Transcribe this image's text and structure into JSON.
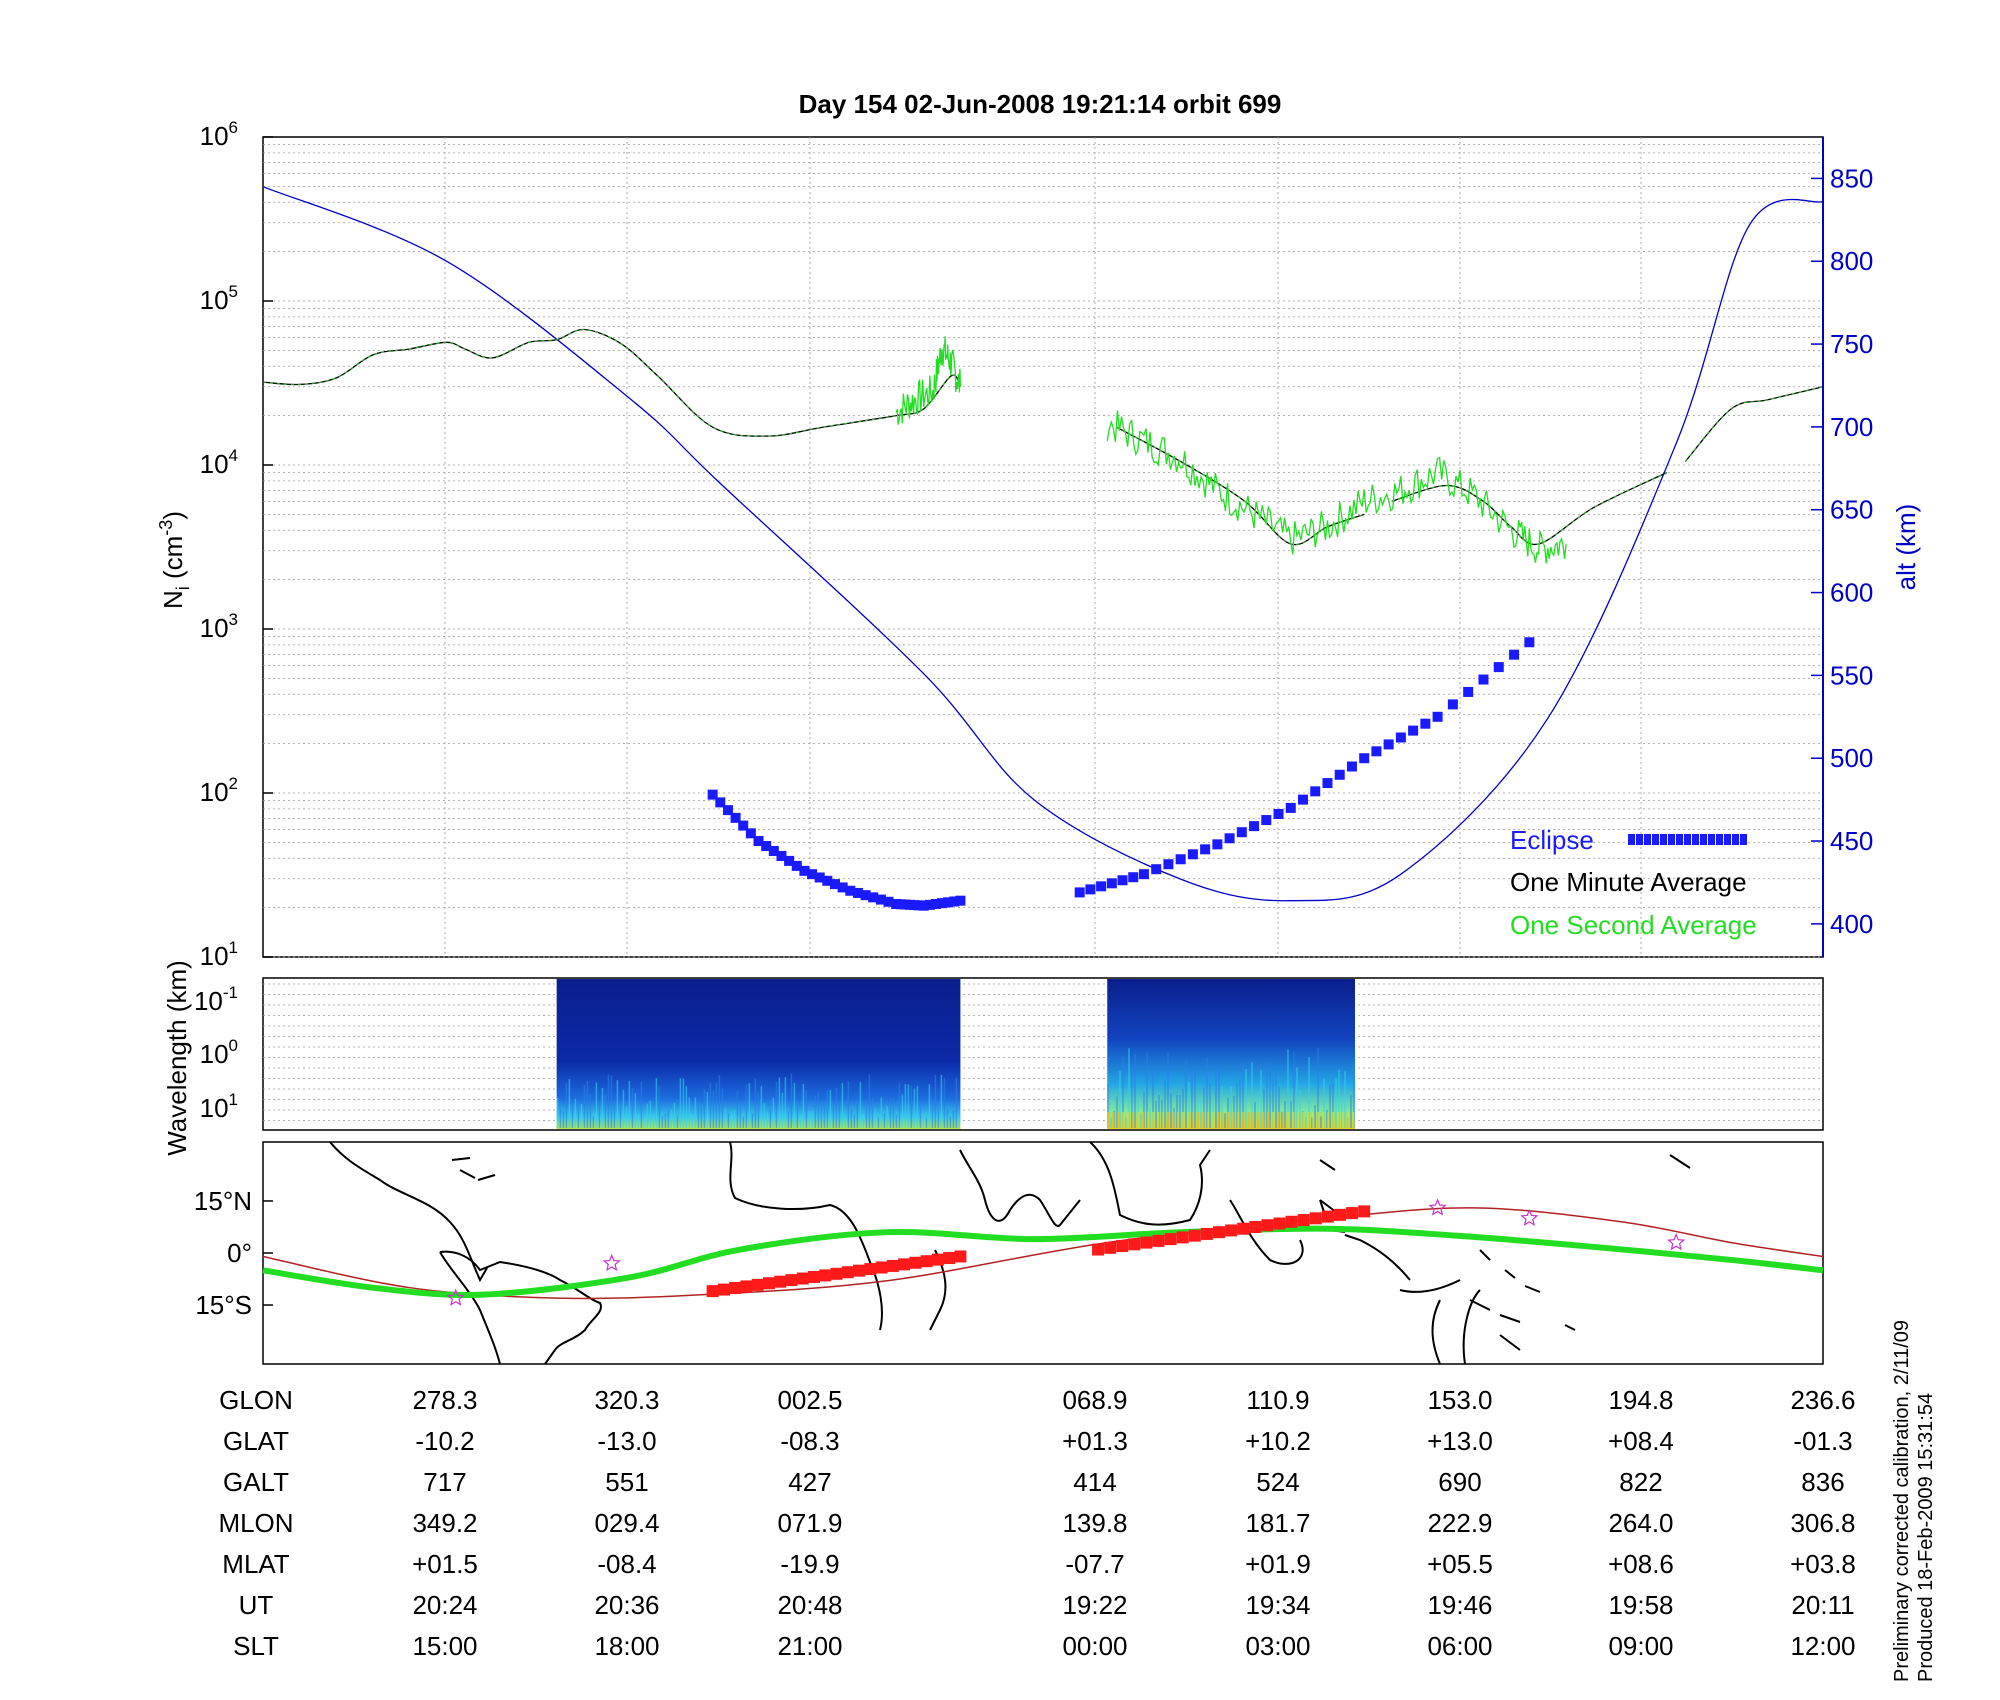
{
  "title": "Day 154  02-Jun-2008 19:21:14   orbit 699",
  "side_note": [
    "Preliminary corrected calibration, 2/11/09",
    "Produced 18-Feb-2009 15:31:54"
  ],
  "colors": {
    "altitude": "#0000c8",
    "one_minute": "#000000",
    "one_second": "#22dd22",
    "eclipse": "#1a1aff",
    "map_eclipse": "#ff1a1a",
    "ground_track": "#22dd22",
    "mag_equator": "#b22222",
    "stars": "#cc33cc"
  },
  "chart_data": [
    {
      "type": "line",
      "ylabel_left": "N_i (cm^-3)",
      "ylabel_right": "alt (km)",
      "left_axis": {
        "scale": "log",
        "ylim": [
          10,
          1000000
        ],
        "ticks": [
          "10^1",
          "10^2",
          "10^3",
          "10^4",
          "10^5",
          "10^6"
        ]
      },
      "right_axis": {
        "ylim": [
          380,
          875
        ],
        "ticks": [
          400,
          450,
          500,
          550,
          600,
          650,
          700,
          750,
          800,
          850
        ]
      },
      "x_ticks_slt": [
        "15:00",
        "18:00",
        "21:00",
        "00:00",
        "03:00",
        "06:00",
        "09:00",
        "12:00"
      ],
      "grid": true,
      "legend": {
        "placement": "bottom-right",
        "entries": [
          "Eclipse",
          "One Minute Average",
          "One Second Average"
        ]
      },
      "series": [
        {
          "name": "alt",
          "axis": "right",
          "x": [
            0,
            1,
            2,
            2.5,
            3.6,
            4.2,
            5,
            5.6,
            6.2,
            7,
            7.7,
            8.1,
            8.5
          ],
          "y": [
            845,
            800,
            717,
            665,
            551,
            475,
            427,
            414,
            430,
            524,
            690,
            822,
            836
          ]
        },
        {
          "name": "One Minute Average",
          "axis": "left",
          "segments": [
            {
              "x": [
                0,
                0.2,
                0.4,
                0.6,
                0.8,
                1,
                1.1,
                1.25,
                1.45,
                1.6,
                1.75,
                1.95,
                2.15,
                2.45,
                2.75,
                3.05,
                3.45,
                3.6,
                3.75,
                3.8
              ],
              "y": [
                32000,
                31000,
                34000,
                47000,
                51000,
                56000,
                51000,
                45000,
                56000,
                58000,
                67000,
                55000,
                35000,
                17000,
                15000,
                17000,
                20000,
                22000,
                35000,
                30000
              ]
            },
            {
              "x": [
                4.65,
                5.0,
                5.35,
                5.6,
                5.8,
                6.0
              ],
              "y": [
                17000,
                10500,
                6000,
                3300,
                4200,
                5000
              ]
            },
            {
              "x": [
                6.15,
                6.45,
                6.65,
                6.8,
                6.95,
                7.25,
                7.65
              ],
              "y": [
                6000,
                7500,
                6000,
                4200,
                3300,
                5500,
                9000
              ]
            },
            {
              "x": [
                7.75,
                8.0,
                8.2,
                8.5
              ],
              "y": [
                10500,
                22000,
                25000,
                30000
              ]
            }
          ]
        },
        {
          "name": "One Second Average",
          "axis": "left",
          "segments": [
            {
              "x": [
                3.45,
                3.55,
                3.65,
                3.7,
                3.75,
                3.8
              ],
              "y": [
                21000,
                25000,
                28000,
                52000,
                42000,
                30000
              ]
            },
            {
              "x": [
                4.6,
                4.8,
                5.0,
                5.2,
                5.4,
                5.6,
                5.8,
                6.0,
                6.2,
                6.4,
                6.6,
                6.8,
                6.95,
                7.1
              ],
              "y": [
                18000,
                14000,
                11000,
                7000,
                5000,
                3500,
                4200,
                6000,
                7000,
                9000,
                6500,
                4000,
                3100,
                3300
              ]
            }
          ]
        },
        {
          "name": "Eclipse",
          "axis": "right",
          "segments": [
            {
              "x": [
                2.45,
                2.7,
                2.95,
                3.2,
                3.45,
                3.6,
                3.8
              ],
              "y": [
                478,
                450,
                432,
                420,
                412,
                411,
                414
              ]
            },
            {
              "x": [
                4.45,
                4.8,
                5.2,
                5.6,
                6.0,
                6.4,
                6.9
              ],
              "y": [
                419,
                430,
                448,
                470,
                500,
                525,
                570
              ]
            }
          ]
        }
      ]
    },
    {
      "type": "heatmap",
      "ylabel": "Wavelength (km)",
      "scale": "log",
      "ticks": [
        "10^-1",
        "10^0",
        "10^1"
      ],
      "active_intervals_slt": [
        [
          1.6,
          3.8
        ],
        [
          4.6,
          5.95
        ]
      ]
    },
    {
      "type": "scatter",
      "description_ticks": [
        "15°N",
        "0°",
        "15°S"
      ],
      "ylim_lat": [
        -32,
        32
      ]
    },
    {
      "type": "table",
      "rows": [
        {
          "label": "GLON",
          "values": [
            "278.3",
            "320.3",
            "002.5",
            "068.9",
            "110.9",
            "153.0",
            "194.8",
            "236.6"
          ]
        },
        {
          "label": "GLAT",
          "values": [
            "-10.2",
            "-13.0",
            "-08.3",
            "+01.3",
            "+10.2",
            "+13.0",
            "+08.4",
            "-01.3"
          ]
        },
        {
          "label": "GALT",
          "values": [
            "717",
            "551",
            "427",
            "414",
            "524",
            "690",
            "822",
            "836"
          ]
        },
        {
          "label": "MLON",
          "values": [
            "349.2",
            "029.4",
            "071.9",
            "139.8",
            "181.7",
            "222.9",
            "264.0",
            "306.8"
          ]
        },
        {
          "label": "MLAT",
          "values": [
            "+01.5",
            "-08.4",
            "-19.9",
            "-07.7",
            "+01.9",
            "+05.5",
            "+08.6",
            "+03.8"
          ]
        },
        {
          "label": "UT",
          "values": [
            "20:24",
            "20:36",
            "20:48",
            "19:22",
            "19:34",
            "19:46",
            "19:58",
            "20:11"
          ]
        },
        {
          "label": "SLT",
          "values": [
            "15:00",
            "18:00",
            "21:00",
            "00:00",
            "03:00",
            "06:00",
            "09:00",
            "12:00"
          ]
        }
      ]
    }
  ]
}
